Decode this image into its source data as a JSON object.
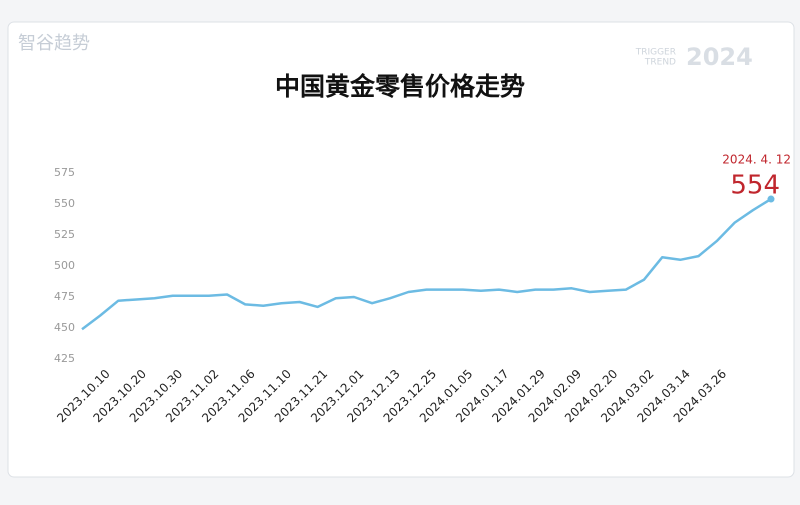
{
  "watermark": {
    "brand": "智谷趋势",
    "tag1": "TRIGGER",
    "tag2": "TREND",
    "year": "2024"
  },
  "chart_data": {
    "type": "line",
    "title": "中国黄金零售价格走势",
    "categories": [
      null,
      "2023.10.10",
      null,
      "2023.10.20",
      null,
      "2023.10.30",
      null,
      "2023.11.02",
      null,
      "2023.11.06",
      null,
      "2023.11.10",
      null,
      "2023.11.21",
      null,
      "2023.12.01",
      null,
      "2023.12.13",
      null,
      "2023.12.25",
      null,
      "2024.01.05",
      null,
      "2024.01.17",
      null,
      "2024.01.29",
      null,
      "2024.02.09",
      null,
      "2024.02.20",
      null,
      "2024.03.02",
      null,
      "2024.03.14",
      null,
      "2024.03.26",
      null,
      null,
      "2024. 4. 12"
    ],
    "values": [
      449,
      460,
      472,
      473,
      474,
      476,
      476,
      476,
      477,
      469,
      468,
      470,
      471,
      467,
      474,
      475,
      470,
      474,
      479,
      481,
      481,
      481,
      480,
      481,
      479,
      481,
      481,
      482,
      479,
      480,
      481,
      489,
      507,
      505,
      508,
      520,
      535,
      545,
      554
    ],
    "color": "#6cbbe3",
    "annotation_color": "#c0262d",
    "ylim": [
      425,
      575
    ],
    "yticks": [
      425,
      450,
      475,
      500,
      525,
      550,
      575
    ],
    "grid": false
  }
}
